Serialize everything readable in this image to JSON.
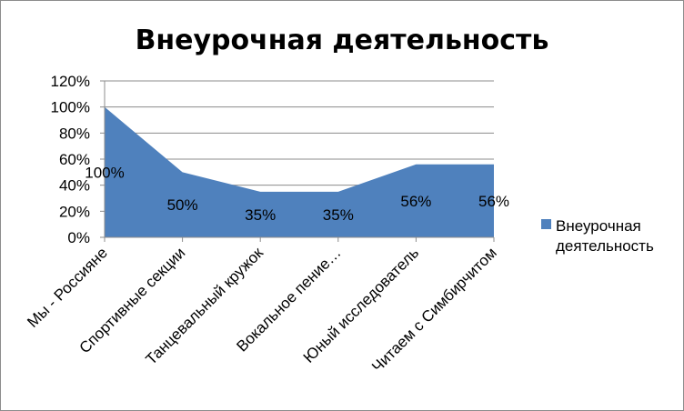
{
  "chart_data": {
    "type": "area",
    "title": "Внеурочная деятельность",
    "categories": [
      "Мы - Россияне",
      "Спортивные секции",
      "Танцевальный кружок",
      "Вокальное пение…",
      "Юный исследователь",
      "Читаем с Симбирчитом"
    ],
    "series": [
      {
        "name": "Внеурочная деятельность",
        "values": [
          100,
          50,
          35,
          35,
          56,
          56
        ],
        "labels": [
          "100%",
          "50%",
          "35%",
          "35%",
          "56%",
          "56%"
        ],
        "color": "#4f81bd"
      }
    ],
    "yticks": [
      "0%",
      "20%",
      "40%",
      "60%",
      "80%",
      "100%",
      "120%"
    ],
    "ylim": [
      0,
      120
    ],
    "ytick_step": 20,
    "grid": true,
    "legend": "right"
  }
}
